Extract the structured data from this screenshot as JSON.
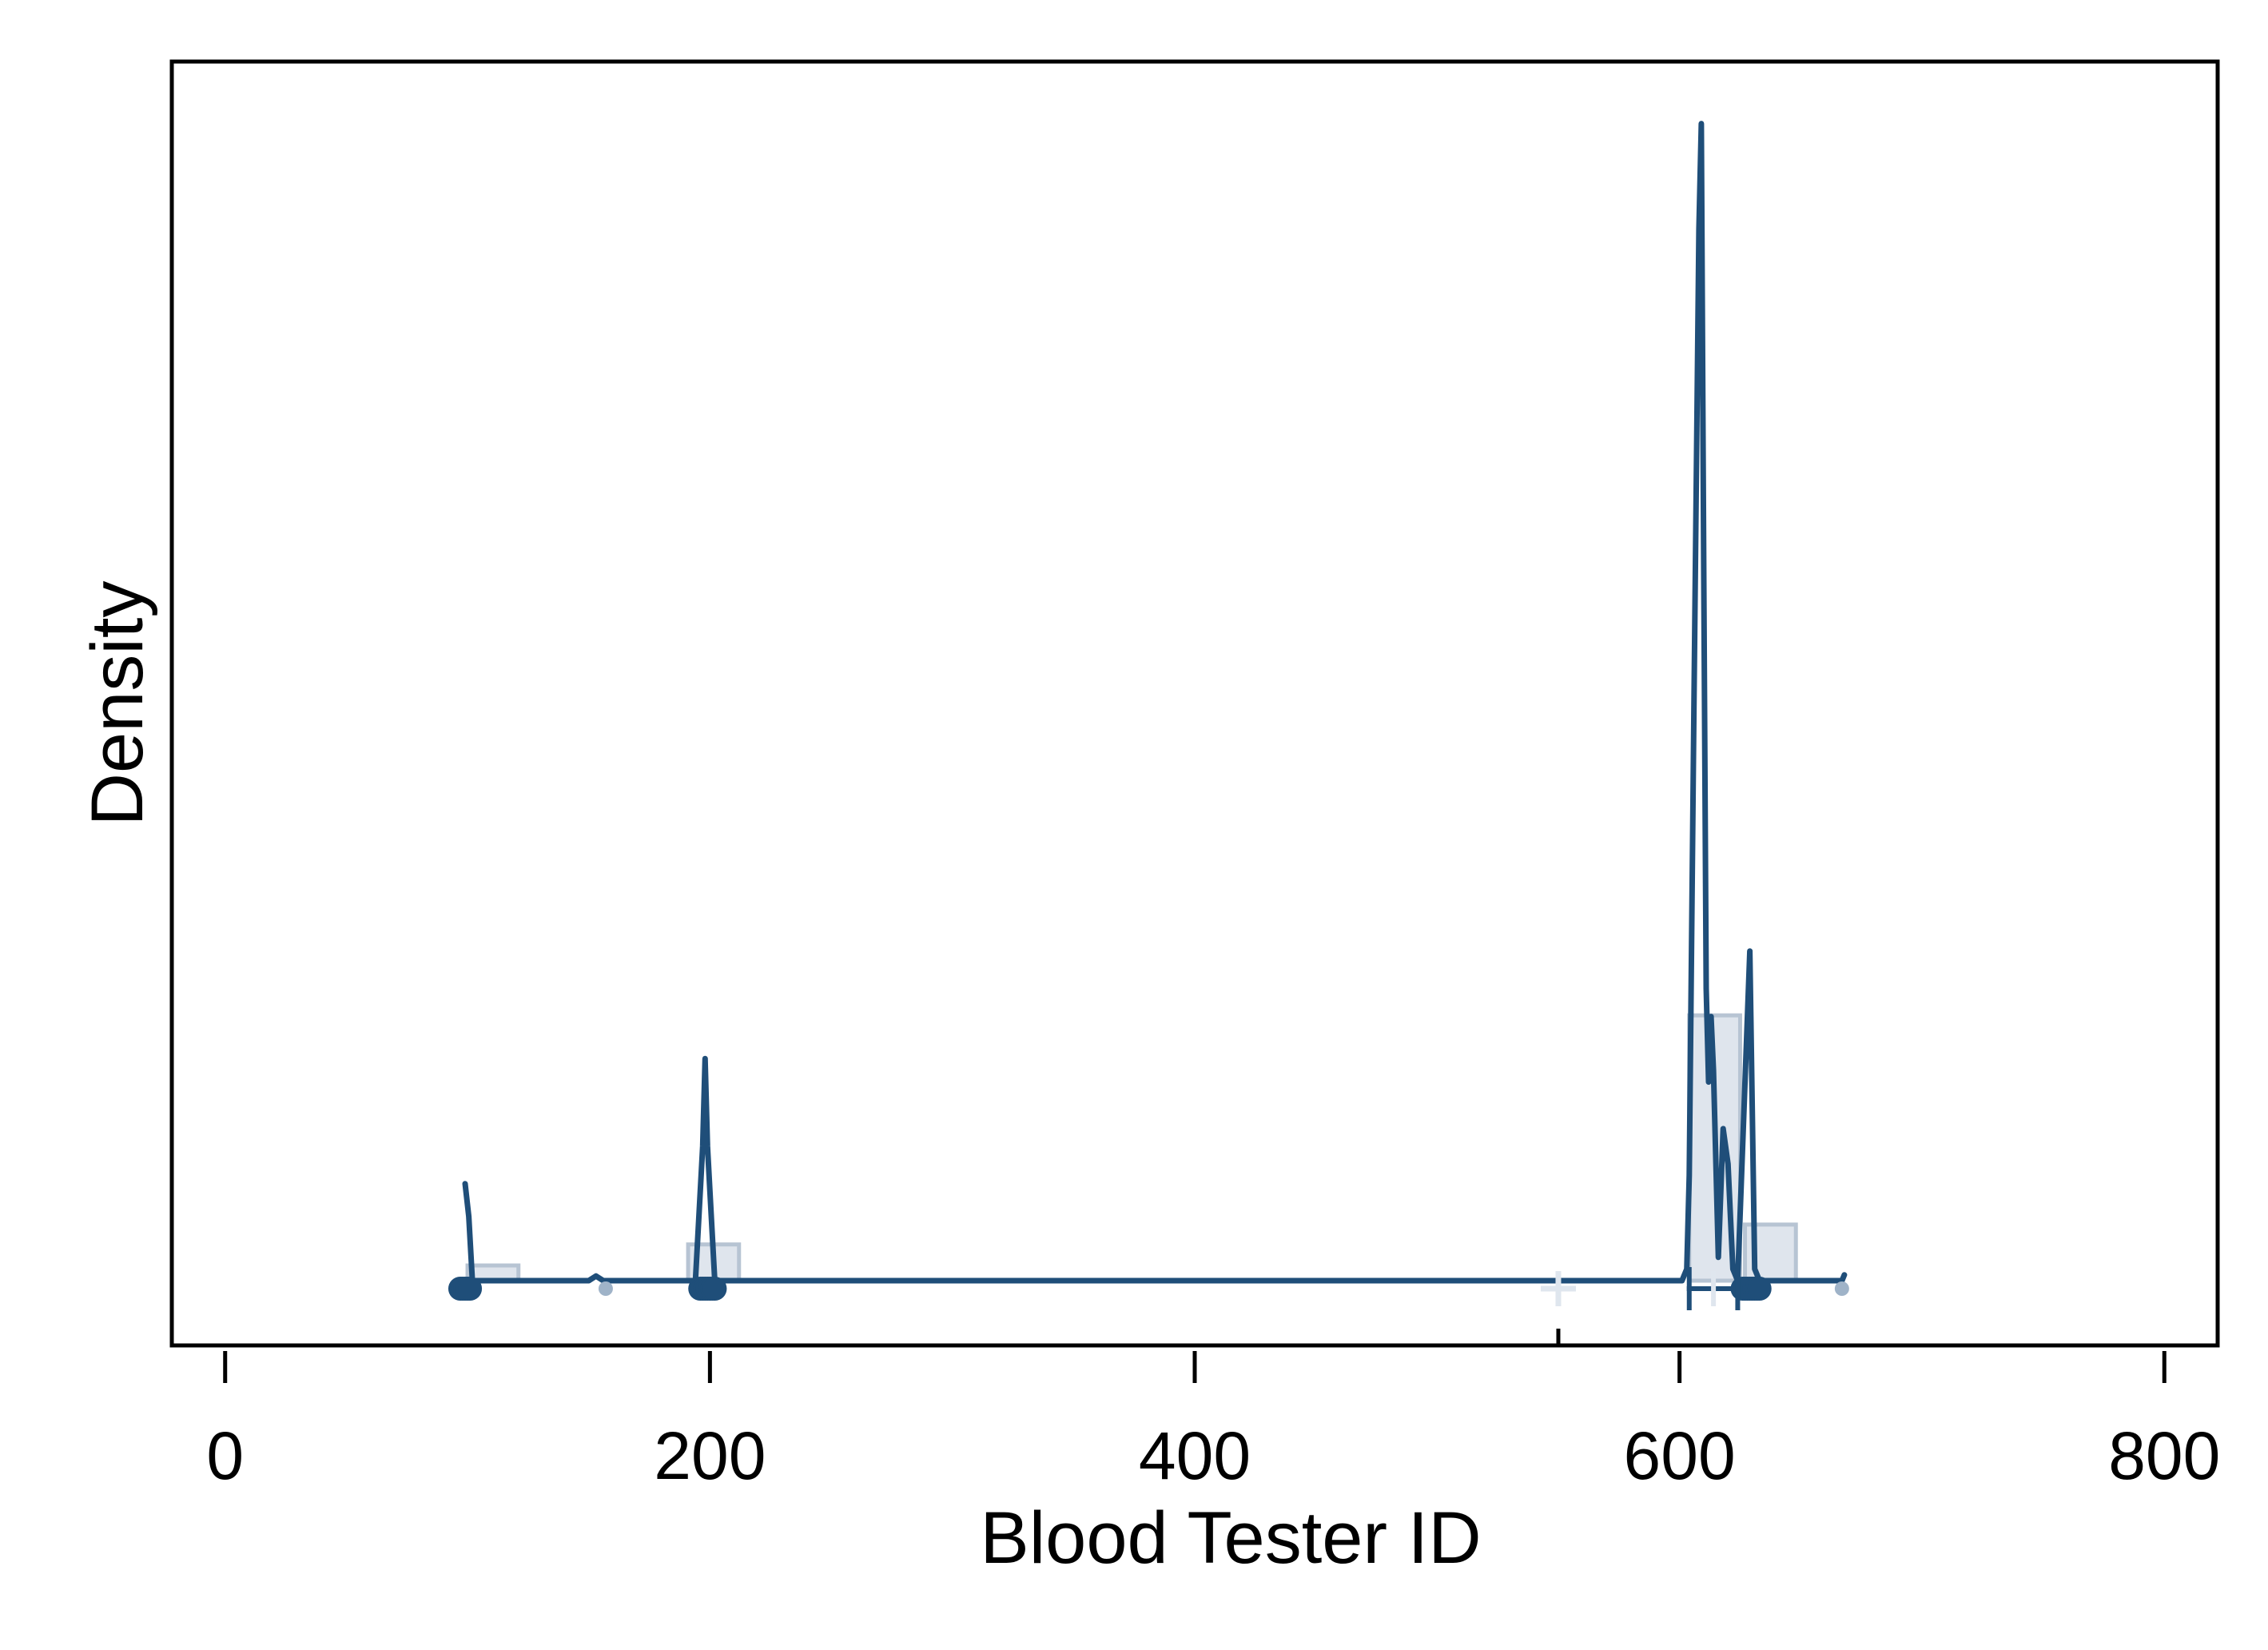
{
  "chart_data": {
    "type": "area",
    "title": "",
    "xlabel": "Blood Tester ID",
    "ylabel": "Density",
    "xlim": [
      -22,
      822
    ],
    "ylim": [
      0,
      1
    ],
    "x_ticks": [
      0,
      200,
      400,
      600,
      800
    ],
    "y_ticks": [],
    "grid": false,
    "legend": "none",
    "colors": {
      "line": "#1f4e79",
      "hist_fill": "#d9e1ea",
      "hist_stroke": "#b7c4d3",
      "light_marker": "#9fb3c8",
      "pale_marker": "#dfe6ee",
      "frame": "#000000"
    },
    "histogram": [
      {
        "x0": 100,
        "x1": 121,
        "height": 0.013
      },
      {
        "x0": 191,
        "x1": 212,
        "height": 0.031
      },
      {
        "x0": 604,
        "x1": 625,
        "height": 0.227
      },
      {
        "x0": 627,
        "x1": 648,
        "height": 0.048
      }
    ],
    "density_curve": [
      [
        99,
        0.083
      ],
      [
        100.5,
        0.055
      ],
      [
        102,
        0.0
      ],
      [
        150,
        0.0
      ],
      [
        153,
        0.004
      ],
      [
        156,
        0.0
      ],
      [
        194,
        0.0
      ],
      [
        197,
        0.115
      ],
      [
        198,
        0.19
      ],
      [
        199,
        0.115
      ],
      [
        202,
        0.0
      ],
      [
        601,
        0.0
      ],
      [
        603,
        0.01
      ],
      [
        604,
        0.09
      ],
      [
        606,
        0.5
      ],
      [
        608,
        0.9
      ],
      [
        609,
        0.99
      ],
      [
        610,
        0.6
      ],
      [
        611,
        0.25
      ],
      [
        612,
        0.17
      ],
      [
        613,
        0.226
      ],
      [
        614,
        0.18
      ],
      [
        616,
        0.02
      ],
      [
        618,
        0.13
      ],
      [
        620,
        0.1
      ],
      [
        622,
        0.01
      ],
      [
        624,
        0.0
      ],
      [
        629,
        0.282
      ],
      [
        631,
        0.01
      ],
      [
        633,
        0.0
      ],
      [
        667,
        0.0
      ],
      [
        668,
        0.005
      ]
    ],
    "rug_points": [
      97,
      98,
      99,
      100,
      101,
      196,
      197,
      198,
      199,
      200,
      201,
      202,
      626,
      627,
      628,
      629,
      630,
      631,
      632,
      633
    ],
    "rug_points_light": [
      157,
      667
    ],
    "box_summary": {
      "min": 604,
      "max": 624,
      "median": 614,
      "whisker_low": 603,
      "whisker_high": 624
    },
    "mean_marker": 550,
    "rug_marker": 550
  }
}
